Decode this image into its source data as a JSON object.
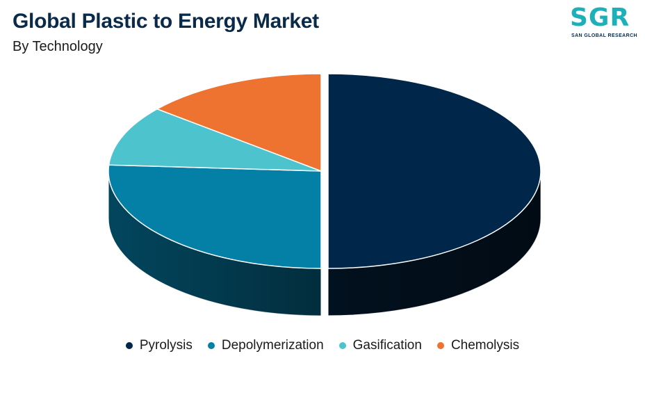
{
  "header": {
    "title": "Global Plastic to Energy Market",
    "subtitle": "By Technology"
  },
  "logo": {
    "mark": "SGR",
    "text": "SAN GLOBAL RESEARCH"
  },
  "chart_data": {
    "type": "pie",
    "style": "3d-exploded",
    "title": "Global Plastic to Energy Market",
    "subtitle": "By Technology",
    "legend_position": "bottom",
    "categories": [
      "Pyrolysis",
      "Depolymerization",
      "Gasification",
      "Chemolysis"
    ],
    "values": [
      50,
      26,
      10,
      14
    ],
    "colors": [
      "#00264a",
      "#047fa6",
      "#4cc3cd",
      "#ee7230"
    ],
    "side_colors": [
      "#02111f",
      "#02465e",
      "#2a7e86",
      "#8a3e15"
    ]
  }
}
